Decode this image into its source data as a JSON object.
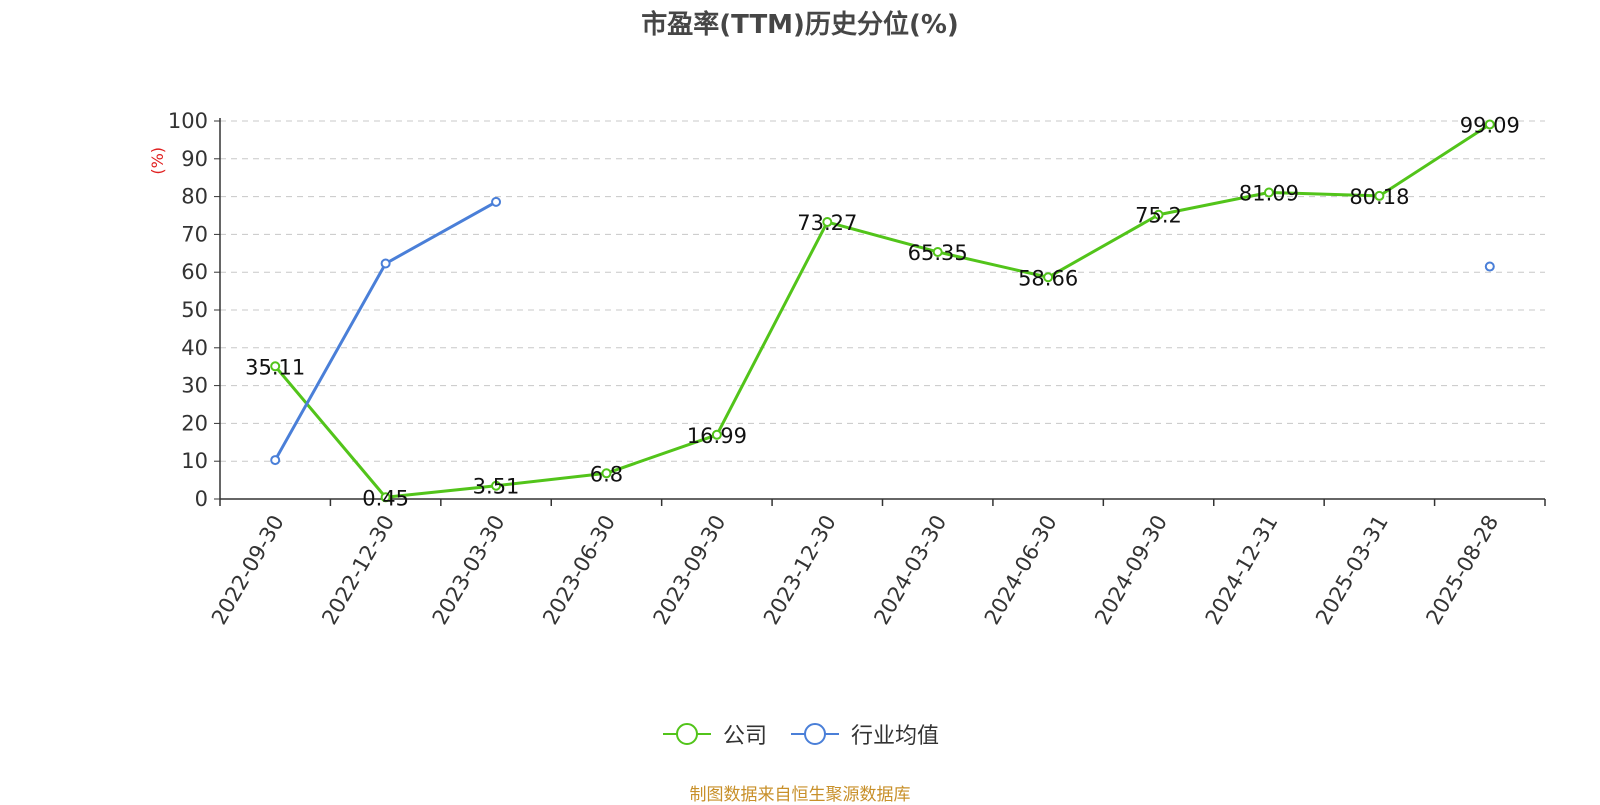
{
  "chart_data": {
    "type": "line",
    "title": "市盈率(TTM)历史分位(%)",
    "ylabel": "(%)",
    "xlabel": "",
    "ylim": [
      0,
      100
    ],
    "yticks": [
      0,
      10,
      20,
      30,
      40,
      50,
      60,
      70,
      80,
      90,
      100
    ],
    "grid": "horizontal dashed",
    "legend_position": "bottom",
    "categories": [
      "2022-09-30",
      "2022-12-30",
      "2023-03-30",
      "2023-06-30",
      "2023-09-30",
      "2023-12-30",
      "2024-03-30",
      "2024-06-30",
      "2024-09-30",
      "2024-12-31",
      "2025-03-31",
      "2025-08-28"
    ],
    "series": [
      {
        "name": "公司",
        "color": "#52c41a",
        "values": [
          35.11,
          0.45,
          3.51,
          6.8,
          16.99,
          73.27,
          65.35,
          58.66,
          75.2,
          81.09,
          80.18,
          99.09
        ],
        "data_labels": [
          "35.11",
          "0.45",
          "3.51",
          "6.8",
          "16.99",
          "73.27",
          "65.35",
          "58.66",
          "75.2",
          "81.09",
          "80.18",
          "99.09"
        ]
      },
      {
        "name": "行业均值",
        "color": "#4a7fd8",
        "values": [
          10.3,
          62.3,
          78.6,
          null,
          null,
          null,
          null,
          null,
          null,
          null,
          null,
          61.5
        ],
        "data_labels": []
      }
    ]
  },
  "source_note": "制图数据来自恒生聚源数据库"
}
